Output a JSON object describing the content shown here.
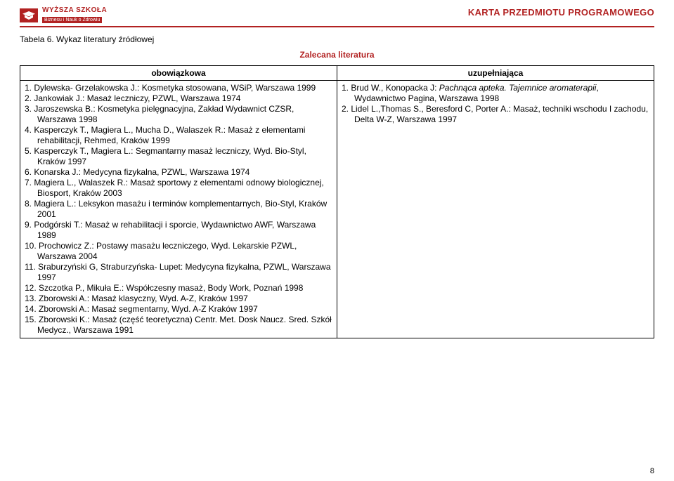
{
  "header": {
    "logo_top": "WYŻSZA SZKOŁA",
    "logo_bottom": "Biznesu i Nauk o Zdrowiu",
    "title": "KARTA PRZEDMIOTU PROGRAMOWEGO"
  },
  "caption": "Tabela 6. Wykaz literatury źródłowej",
  "lit_title": "Zalecana literatura",
  "columns": {
    "left": "obowiązkowa",
    "right": "uzupełniająca"
  },
  "mandatory": [
    "1.  Dylewska- Grzelakowska J.: Kosmetyka stosowana, WSiP, Warszawa 1999",
    "2.  Jankowiak J.: Masaż leczniczy, PZWL, Warszawa 1974",
    "3.  Jaroszewska B.: Kosmetyka pielęgnacyjna, Zakład Wydawnict CZSR, Warszawa 1998",
    "4.  Kasperczyk T., Magiera L., Mucha D., Walaszek R.: Masaż z elementami rehabilitacji, Rehmed, Kraków 1999",
    "5.  Kasperczyk T., Magiera L.: Segmantarny masaż leczniczy, Wyd. Bio-Styl, Kraków 1997",
    "6.  Konarska J.: Medycyna fizykalna, PZWL, Warszawa 1974",
    "7.  Magiera L., Walaszek R.: Masaż sportowy z elementami odnowy biologicznej, Biosport, Kraków 2003",
    "8.  Magiera L.: Leksykon masażu i terminów komplementarnych, Bio-Styl, Kraków 2001",
    "9.  Podgórski T.: Masaż w rehabilitacji i sporcie, Wydawnictwo AWF, Warszawa 1989",
    "10. Prochowicz Z.: Postawy masażu leczniczego, Wyd. Lekarskie PZWL, Warszawa 2004",
    "11. Sraburzyński G, Straburzyńska- Lupet: Medycyna fizykalna, PZWL, Warszawa 1997",
    "12. Szczotka P., Mikuła E.: Współczesny masaż, Body Work, Poznań 1998",
    "13. Zborowski A.: Masaż klasyczny, Wyd. A-Z, Kraków 1997",
    "14. Zborowski A.: Masaż segmentarny, Wyd. A-Z Kraków 1997",
    "15. Zborowski K.: Masaż (część teoretyczna) Centr. Met. Dosk Naucz. Sred. Szkół Medycz., Warszawa 1991"
  ],
  "supplementary": [
    {
      "prefix": "1.  Brud W., Konopacka J: ",
      "italic": "Pachnąca apteka. Tajemnice aromaterapii",
      "suffix": ", Wydawnictwo Pagina, Warszawa 1998"
    },
    {
      "prefix": "2.  Lidel L.,Thomas S., Beresford C, Porter A.: Masaż, techniki wschodu I zachodu,  Delta W-Z, Warszawa 1997",
      "italic": "",
      "suffix": ""
    }
  ],
  "page_number": "8",
  "colors": {
    "accent": "#b22222",
    "border": "#000000",
    "background": "#ffffff",
    "text": "#000000"
  }
}
